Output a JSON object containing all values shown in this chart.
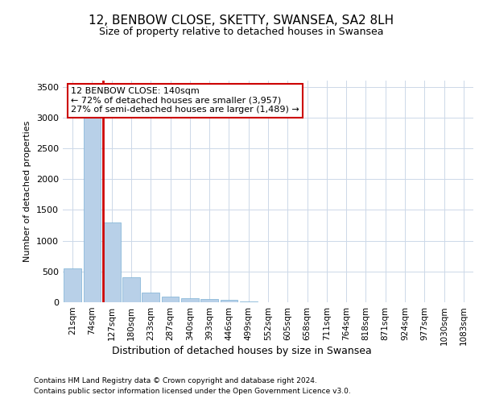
{
  "title1": "12, BENBOW CLOSE, SKETTY, SWANSEA, SA2 8LH",
  "title2": "Size of property relative to detached houses in Swansea",
  "xlabel": "Distribution of detached houses by size in Swansea",
  "ylabel": "Number of detached properties",
  "footer1": "Contains HM Land Registry data © Crown copyright and database right 2024.",
  "footer2": "Contains public sector information licensed under the Open Government Licence v3.0.",
  "bins": [
    "21sqm",
    "74sqm",
    "127sqm",
    "180sqm",
    "233sqm",
    "287sqm",
    "340sqm",
    "393sqm",
    "446sqm",
    "499sqm",
    "552sqm",
    "605sqm",
    "658sqm",
    "711sqm",
    "764sqm",
    "818sqm",
    "871sqm",
    "924sqm",
    "977sqm",
    "1030sqm",
    "1083sqm"
  ],
  "values": [
    550,
    3450,
    1300,
    400,
    160,
    90,
    60,
    50,
    40,
    10,
    5,
    3,
    2,
    0,
    0,
    0,
    0,
    0,
    0,
    0,
    0
  ],
  "property_bin_index": 2,
  "annotation_line1": "12 BENBOW CLOSE: 140sqm",
  "annotation_line2": "← 72% of detached houses are smaller (3,957)",
  "annotation_line3": "27% of semi-detached houses are larger (1,489) →",
  "bar_color": "#b8d0e8",
  "bar_edge_color": "#7aafd4",
  "vline_color": "#cc0000",
  "annotation_box_color": "#ffffff",
  "annotation_box_edge": "#cc0000",
  "ylim": [
    0,
    3600
  ],
  "yticks": [
    0,
    500,
    1000,
    1500,
    2000,
    2500,
    3000,
    3500
  ],
  "background_color": "#ffffff",
  "grid_color": "#ccd8e8",
  "title_fontsize": 11,
  "subtitle_fontsize": 9,
  "ylabel_fontsize": 8,
  "tick_fontsize": 8,
  "xtick_fontsize": 7.5,
  "annotation_fontsize": 8,
  "footer_fontsize": 6.5
}
